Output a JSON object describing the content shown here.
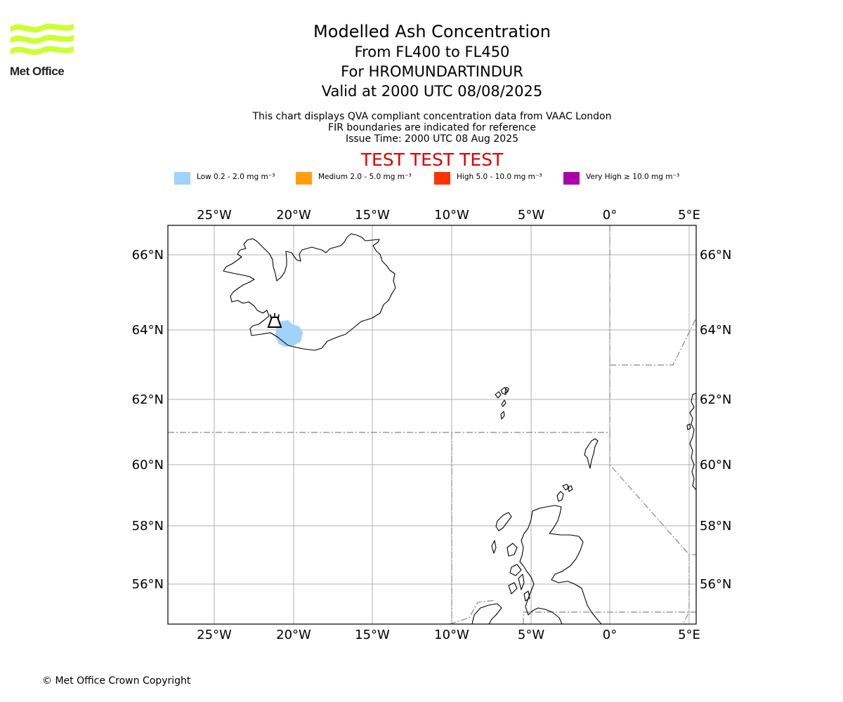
{
  "logo": {
    "text": "Met Office",
    "color": "#ccff33"
  },
  "title": {
    "line1": "Modelled Ash Concentration",
    "line2": "From FL400 to FL450",
    "line3": "For HROMUNDARTINDUR",
    "line4": "Valid at 2000 UTC 08/08/2025"
  },
  "notes": {
    "line1": "This chart displays QVA compliant concentration data from VAAC London",
    "line2": "FIR boundaries are indicated for reference",
    "line3": "Issue Time: 2000 UTC 08 Aug 2025"
  },
  "test_banner": "TEST TEST TEST",
  "legend": [
    {
      "label": "Low 0.2 - 2.0 mg m⁻³",
      "color": "#a0d2fa"
    },
    {
      "label": "Medium 2.0 - 5.0 mg m⁻³",
      "color": "#ff9f0f"
    },
    {
      "label": "High 5.0 - 10.0 mg m⁻³",
      "color": "#ff3300"
    },
    {
      "label": "Very High ≥ 10.0 mg m⁻³",
      "color": "#aa00aa"
    }
  ],
  "map": {
    "lon_ticks": [
      "25°W",
      "20°W",
      "15°W",
      "10°W",
      "5°W",
      "0°",
      "5°E"
    ],
    "lat_ticks": [
      "66°N",
      "64°N",
      "62°N",
      "60°N",
      "58°N",
      "56°N"
    ],
    "volcano": "HROMUNDARTINDUR",
    "ash_cloud_level": "Low"
  },
  "copyright": "© Met Office Crown Copyright"
}
